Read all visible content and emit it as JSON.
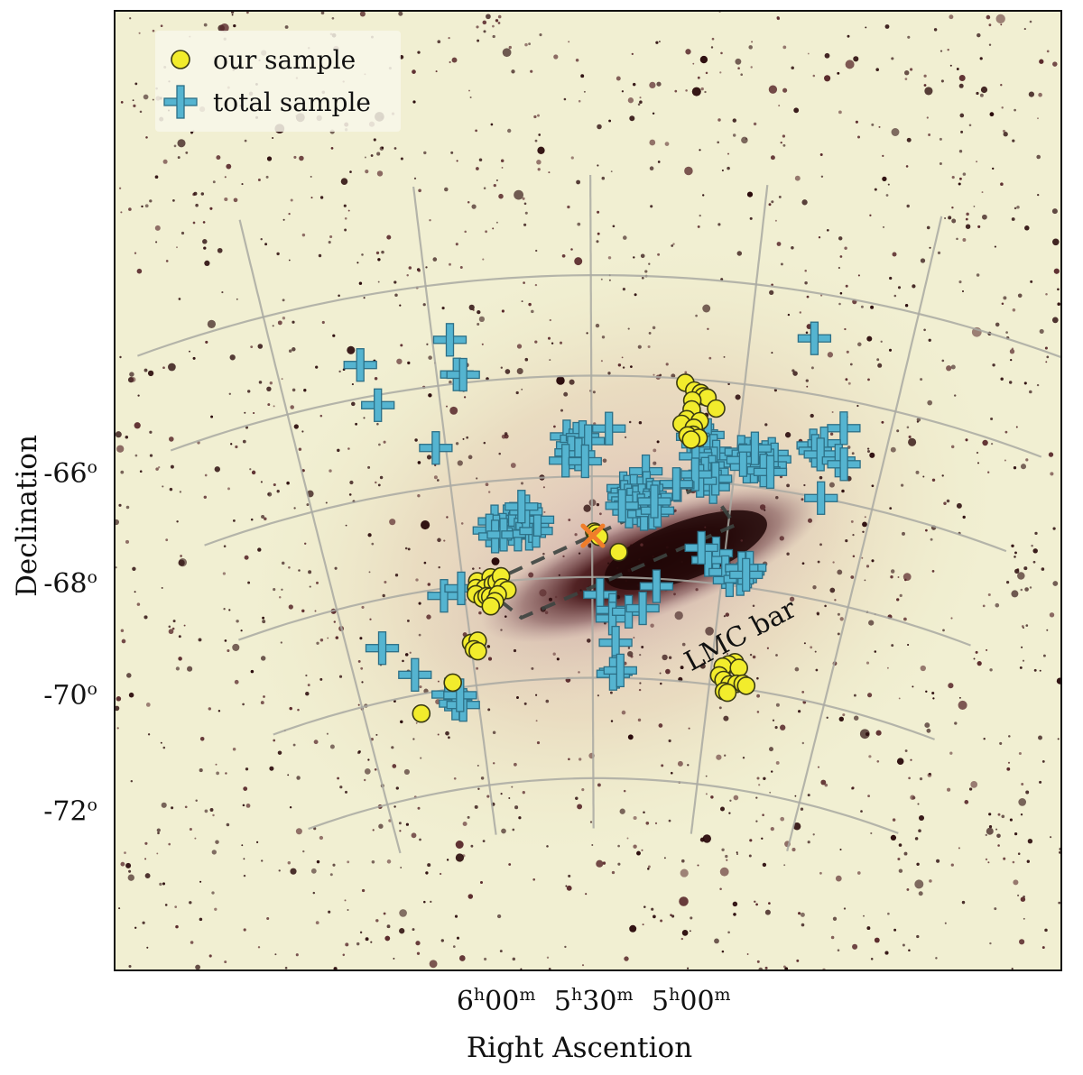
{
  "chart_data": {
    "type": "scatter",
    "title": "",
    "xlabel": "Right Ascention",
    "ylabel": "Declination",
    "xlim_ra_hours": [
      6.3,
      4.55
    ],
    "ylim_dec_deg": [
      -72.4,
      -64.7
    ],
    "x_ticks": [
      {
        "ra_hours": 6.0,
        "h": "6",
        "m": "00"
      },
      {
        "ra_hours": 5.5,
        "h": "5",
        "m": "30"
      },
      {
        "ra_hours": 5.0,
        "h": "5",
        "m": "00"
      }
    ],
    "y_ticks": [
      {
        "dec": -66,
        "label": "-66"
      },
      {
        "dec": -68,
        "label": "-68"
      },
      {
        "dec": -70,
        "label": "-70"
      },
      {
        "dec": -72,
        "label": "-72"
      }
    ],
    "grid": true,
    "legend": {
      "placement": "top-left",
      "entries": [
        {
          "label": "our sample",
          "marker": "circle",
          "color": "#f2ec2c"
        },
        {
          "label": "total sample",
          "marker": "plus",
          "color": "#55b4d0"
        }
      ]
    },
    "annotation": {
      "text": "LMC bar",
      "type": "dashed-rectangle"
    },
    "center_marker": {
      "marker": "x",
      "color": "#f07d2a",
      "ra_hours": 5.497,
      "dec": -69.18
    },
    "bar_box_corners": [
      [
        5.93,
        -70.05
      ],
      [
        5.785,
        -70.75
      ],
      [
        4.975,
        -68.8
      ],
      [
        5.095,
        -68.05
      ]
    ],
    "series": [
      {
        "name": "our sample",
        "marker": "circle",
        "color": "#f2ec2c",
        "points": [
          [
            5.193,
            -66.08
          ],
          [
            5.162,
            -66.22
          ],
          [
            5.14,
            -66.26
          ],
          [
            5.131,
            -66.32
          ],
          [
            5.117,
            -66.34
          ],
          [
            5.166,
            -66.42
          ],
          [
            5.166,
            -66.6
          ],
          [
            5.085,
            -66.54
          ],
          [
            5.18,
            -66.8
          ],
          [
            5.196,
            -66.9
          ],
          [
            5.136,
            -66.82
          ],
          [
            5.154,
            -66.96
          ],
          [
            5.154,
            -67.1
          ],
          [
            5.173,
            -67.12
          ],
          [
            5.135,
            -67.15
          ],
          [
            5.16,
            -67.2
          ],
          [
            5.492,
            -69.1
          ],
          [
            5.485,
            -69.13
          ],
          [
            5.474,
            -69.2
          ],
          [
            5.4,
            -69.5
          ],
          [
            5.945,
            -69.95
          ],
          [
            5.892,
            -69.9
          ],
          [
            5.952,
            -70.08
          ],
          [
            5.918,
            -70.1
          ],
          [
            5.886,
            -70.03
          ],
          [
            5.87,
            -70.0
          ],
          [
            5.852,
            -69.9
          ],
          [
            5.851,
            -70.12
          ],
          [
            5.832,
            -70.18
          ],
          [
            5.956,
            -70.2
          ],
          [
            5.932,
            -70.3
          ],
          [
            5.915,
            -70.26
          ],
          [
            5.901,
            -70.28
          ],
          [
            5.871,
            -70.25
          ],
          [
            5.885,
            -70.38
          ],
          [
            5.903,
            -70.47
          ],
          [
            5.999,
            -71.15
          ],
          [
            5.971,
            -71.12
          ],
          [
            5.991,
            -71.28
          ],
          [
            5.976,
            -71.33
          ],
          [
            6.098,
            -71.88
          ],
          [
            6.255,
            -72.38
          ],
          [
            4.905,
            -71.5
          ],
          [
            4.93,
            -71.56
          ],
          [
            4.953,
            -71.62
          ],
          [
            4.885,
            -71.6
          ],
          [
            4.963,
            -71.8
          ],
          [
            4.942,
            -71.88
          ],
          [
            4.914,
            -71.95
          ],
          [
            4.885,
            -71.92
          ],
          [
            4.859,
            -71.9
          ],
          [
            4.843,
            -71.93
          ],
          [
            4.934,
            -72.1
          ],
          [
            4.918,
            -72.12
          ]
        ]
      },
      {
        "name": "total sample",
        "marker": "plus",
        "color": "#55b4d0",
        "points": [
          [
            4.8,
            -64.9
          ],
          [
            5.945,
            -65.12
          ],
          [
            6.237,
            -65.35
          ],
          [
            5.935,
            -65.82
          ],
          [
            5.915,
            -65.84
          ],
          [
            6.204,
            -66.2
          ],
          [
            4.655,
            -66.55
          ],
          [
            6.034,
            -67.22
          ],
          [
            5.585,
            -67.2
          ],
          [
            5.565,
            -67.38
          ],
          [
            5.551,
            -67.25
          ],
          [
            5.531,
            -67.22
          ],
          [
            5.512,
            -67.3
          ],
          [
            5.571,
            -67.52
          ],
          [
            5.546,
            -67.56
          ],
          [
            5.591,
            -67.68
          ],
          [
            5.523,
            -67.7
          ],
          [
            5.441,
            -67.05
          ],
          [
            5.142,
            -66.95
          ],
          [
            5.127,
            -67.06
          ],
          [
            5.105,
            -67.08
          ],
          [
            5.155,
            -67.14
          ],
          [
            5.135,
            -67.28
          ],
          [
            5.116,
            -67.38
          ],
          [
            5.102,
            -67.43
          ],
          [
            5.08,
            -67.38
          ],
          [
            5.069,
            -67.49
          ],
          [
            5.075,
            -67.63
          ],
          [
            5.095,
            -67.68
          ],
          [
            5.14,
            -67.52
          ],
          [
            4.985,
            -67.34
          ],
          [
            4.96,
            -67.36
          ],
          [
            4.94,
            -67.4
          ],
          [
            4.92,
            -67.45
          ],
          [
            4.9,
            -67.38
          ],
          [
            4.88,
            -67.3
          ],
          [
            4.868,
            -67.4
          ],
          [
            4.88,
            -67.53
          ],
          [
            4.908,
            -67.55
          ],
          [
            4.935,
            -67.6
          ],
          [
            4.96,
            -67.62
          ],
          [
            4.975,
            -67.5
          ],
          [
            4.9,
            -67.65
          ],
          [
            4.876,
            -67.66
          ],
          [
            4.94,
            -67.24
          ],
          [
            4.745,
            -67.0
          ],
          [
            4.71,
            -66.92
          ],
          [
            4.735,
            -67.1
          ],
          [
            4.715,
            -67.15
          ],
          [
            4.65,
            -67.2
          ],
          [
            4.63,
            -67.25
          ],
          [
            4.685,
            -68.0
          ],
          [
            5.078,
            -67.8
          ],
          [
            5.092,
            -67.95
          ],
          [
            5.102,
            -67.85
          ],
          [
            5.069,
            -68.1
          ],
          [
            5.064,
            -67.93
          ],
          [
            5.117,
            -68.0
          ],
          [
            5.136,
            -67.88
          ],
          [
            5.195,
            -68.12
          ],
          [
            5.2,
            -68.1
          ],
          [
            5.31,
            -67.88
          ],
          [
            5.388,
            -68.23
          ],
          [
            5.373,
            -68.3
          ],
          [
            5.35,
            -68.28
          ],
          [
            5.325,
            -68.32
          ],
          [
            5.305,
            -68.21
          ],
          [
            5.292,
            -68.34
          ],
          [
            5.29,
            -68.4
          ],
          [
            5.27,
            -68.38
          ],
          [
            5.384,
            -68.4
          ],
          [
            5.37,
            -68.47
          ],
          [
            5.36,
            -68.55
          ],
          [
            5.34,
            -68.5
          ],
          [
            5.32,
            -68.46
          ],
          [
            5.3,
            -68.55
          ],
          [
            5.28,
            -68.55
          ],
          [
            5.302,
            -68.6
          ],
          [
            5.34,
            -68.62
          ],
          [
            5.322,
            -68.66
          ],
          [
            5.365,
            -68.69
          ],
          [
            5.31,
            -68.73
          ],
          [
            5.28,
            -68.7
          ],
          [
            5.262,
            -68.65
          ],
          [
            5.275,
            -68.47
          ],
          [
            5.391,
            -68.58
          ],
          [
            5.857,
            -68.8
          ],
          [
            5.812,
            -68.82
          ],
          [
            5.788,
            -68.78
          ],
          [
            5.755,
            -68.8
          ],
          [
            5.748,
            -68.88
          ],
          [
            5.772,
            -68.93
          ],
          [
            5.795,
            -68.98
          ],
          [
            5.83,
            -68.98
          ],
          [
            5.855,
            -69.0
          ],
          [
            5.879,
            -68.97
          ],
          [
            5.86,
            -69.1
          ],
          [
            5.828,
            -69.08
          ],
          [
            5.775,
            -69.1
          ],
          [
            5.733,
            -69.1
          ],
          [
            5.72,
            -68.95
          ],
          [
            5.707,
            -69.05
          ],
          [
            5.7,
            -68.83
          ],
          [
            5.74,
            -68.65
          ],
          [
            5.755,
            -68.55
          ],
          [
            5.033,
            -69.4
          ],
          [
            5.06,
            -69.55
          ],
          [
            4.99,
            -69.75
          ],
          [
            4.97,
            -69.9
          ],
          [
            4.93,
            -69.85
          ],
          [
            4.905,
            -69.68
          ],
          [
            4.9,
            -69.6
          ],
          [
            4.93,
            -69.63
          ],
          [
            4.91,
            -69.75
          ],
          [
            5.25,
            -70.15
          ],
          [
            5.09,
            -69.32
          ],
          [
            6.08,
            -70.15
          ],
          [
            6.01,
            -70.05
          ],
          [
            5.47,
            -70.35
          ],
          [
            5.42,
            -70.65
          ],
          [
            5.42,
            -70.82
          ],
          [
            5.355,
            -70.68
          ],
          [
            5.3,
            -70.6
          ],
          [
            5.405,
            -71.3
          ],
          [
            5.402,
            -71.88
          ],
          [
            5.413,
            -71.92
          ],
          [
            5.383,
            -71.85
          ],
          [
            6.36,
            -70.95
          ],
          [
            6.25,
            -71.6
          ],
          [
            6.125,
            -72.1
          ],
          [
            6.1,
            -72.3
          ],
          [
            6.068,
            -72.35
          ],
          [
            6.075,
            -72.15
          ]
        ]
      }
    ]
  }
}
